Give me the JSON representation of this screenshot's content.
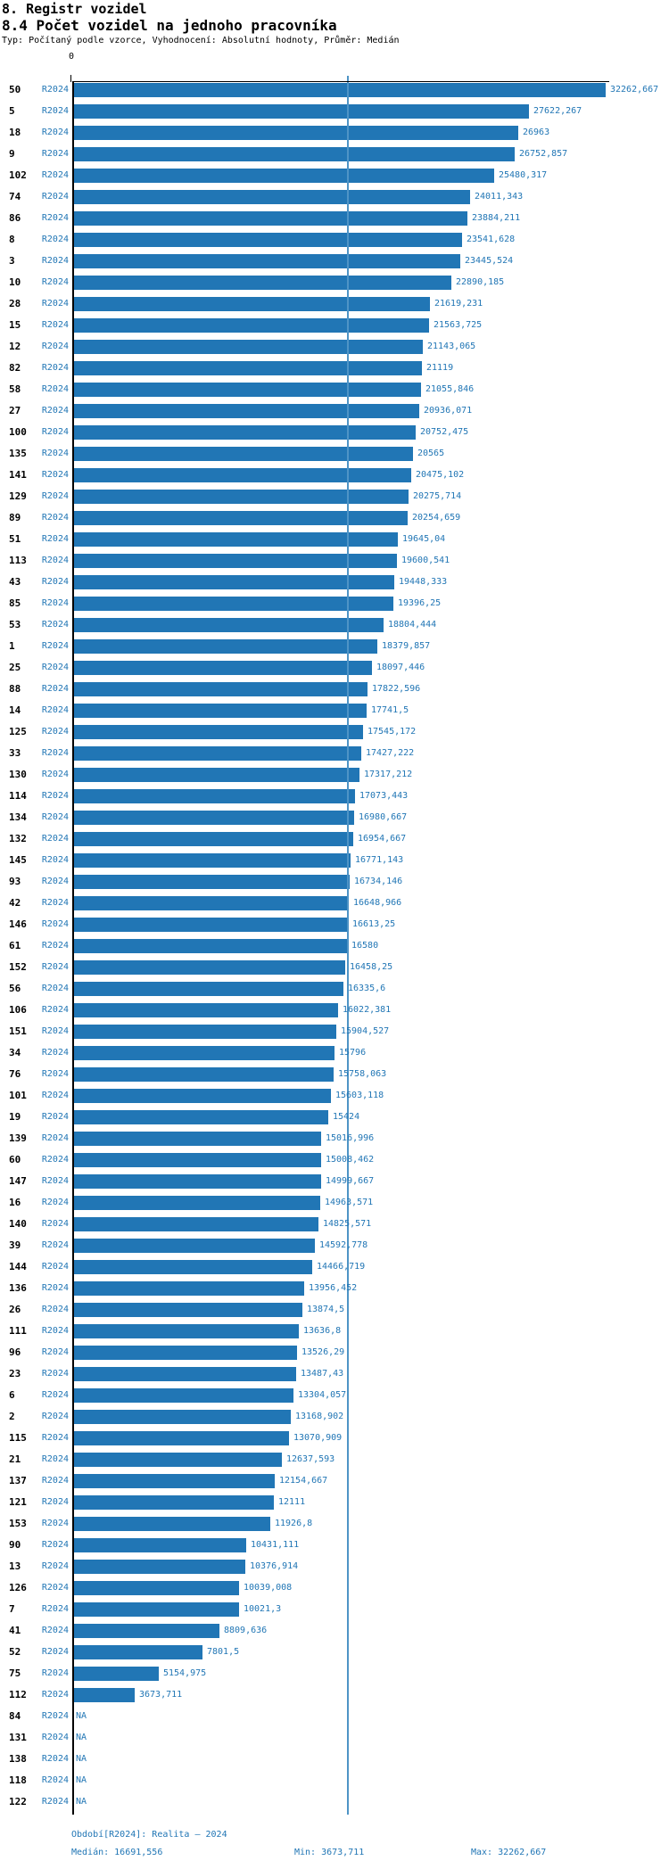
{
  "title": "8. Registr vozidel",
  "subtitle": "8.4 Počet vozidel na jednoho pracovníka",
  "meta": "Typ: Počítaný podle vzorce, Vyhodnocení: Absolutní hodnoty, Průměr: Medián",
  "axis": {
    "zero_label": "0"
  },
  "colors": {
    "bar": "#2176b5",
    "blue_text": "#2176b5",
    "median_line": "#4e94c6",
    "axis": "#000000"
  },
  "footer": {
    "period": "Období[R2024]: Realita – 2024",
    "median": "Medián: 16691,556",
    "min": "Min: 3673,711",
    "max": "Max: 32262,667"
  },
  "chart_data": {
    "type": "bar",
    "orientation": "horizontal",
    "series_label": "R2024",
    "value_axis": {
      "zero_tick": 0,
      "data_max": 32262.667,
      "gridline_at_median": true
    },
    "median": 16691.556,
    "min": 3673.711,
    "max": 32262.667,
    "na_text": "NA",
    "rows": [
      {
        "id": "50",
        "period": "R2024",
        "label": "32262,667",
        "value": 32262.667
      },
      {
        "id": "5",
        "period": "R2024",
        "label": "27622,267",
        "value": 27622.267
      },
      {
        "id": "18",
        "period": "R2024",
        "label": "26963",
        "value": 26963
      },
      {
        "id": "9",
        "period": "R2024",
        "label": "26752,857",
        "value": 26752.857
      },
      {
        "id": "102",
        "period": "R2024",
        "label": "25480,317",
        "value": 25480.317
      },
      {
        "id": "74",
        "period": "R2024",
        "label": "24011,343",
        "value": 24011.343
      },
      {
        "id": "86",
        "period": "R2024",
        "label": "23884,211",
        "value": 23884.211
      },
      {
        "id": "8",
        "period": "R2024",
        "label": "23541,628",
        "value": 23541.628
      },
      {
        "id": "3",
        "period": "R2024",
        "label": "23445,524",
        "value": 23445.524
      },
      {
        "id": "10",
        "period": "R2024",
        "label": "22890,185",
        "value": 22890.185
      },
      {
        "id": "28",
        "period": "R2024",
        "label": "21619,231",
        "value": 21619.231
      },
      {
        "id": "15",
        "period": "R2024",
        "label": "21563,725",
        "value": 21563.725
      },
      {
        "id": "12",
        "period": "R2024",
        "label": "21143,065",
        "value": 21143.065
      },
      {
        "id": "82",
        "period": "R2024",
        "label": "21119",
        "value": 21119
      },
      {
        "id": "58",
        "period": "R2024",
        "label": "21055,846",
        "value": 21055.846
      },
      {
        "id": "27",
        "period": "R2024",
        "label": "20936,071",
        "value": 20936.071
      },
      {
        "id": "100",
        "period": "R2024",
        "label": "20752,475",
        "value": 20752.475
      },
      {
        "id": "135",
        "period": "R2024",
        "label": "20565",
        "value": 20565
      },
      {
        "id": "141",
        "period": "R2024",
        "label": "20475,102",
        "value": 20475.102
      },
      {
        "id": "129",
        "period": "R2024",
        "label": "20275,714",
        "value": 20275.714
      },
      {
        "id": "89",
        "period": "R2024",
        "label": "20254,659",
        "value": 20254.659
      },
      {
        "id": "51",
        "period": "R2024",
        "label": "19645,04",
        "value": 19645.04
      },
      {
        "id": "113",
        "period": "R2024",
        "label": "19600,541",
        "value": 19600.541
      },
      {
        "id": "43",
        "period": "R2024",
        "label": "19448,333",
        "value": 19448.333
      },
      {
        "id": "85",
        "period": "R2024",
        "label": "19396,25",
        "value": 19396.25
      },
      {
        "id": "53",
        "period": "R2024",
        "label": "18804,444",
        "value": 18804.444
      },
      {
        "id": "1",
        "period": "R2024",
        "label": "18379,857",
        "value": 18379.857
      },
      {
        "id": "25",
        "period": "R2024",
        "label": "18097,446",
        "value": 18097.446
      },
      {
        "id": "88",
        "period": "R2024",
        "label": "17822,596",
        "value": 17822.596
      },
      {
        "id": "14",
        "period": "R2024",
        "label": "17741,5",
        "value": 17741.5
      },
      {
        "id": "125",
        "period": "R2024",
        "label": "17545,172",
        "value": 17545.172
      },
      {
        "id": "33",
        "period": "R2024",
        "label": "17427,222",
        "value": 17427.222
      },
      {
        "id": "130",
        "period": "R2024",
        "label": "17317,212",
        "value": 17317.212
      },
      {
        "id": "114",
        "period": "R2024",
        "label": "17073,443",
        "value": 17073.443
      },
      {
        "id": "134",
        "period": "R2024",
        "label": "16980,667",
        "value": 16980.667
      },
      {
        "id": "132",
        "period": "R2024",
        "label": "16954,667",
        "value": 16954.667
      },
      {
        "id": "145",
        "period": "R2024",
        "label": "16771,143",
        "value": 16771.143
      },
      {
        "id": "93",
        "period": "R2024",
        "label": "16734,146",
        "value": 16734.146
      },
      {
        "id": "42",
        "period": "R2024",
        "label": "16648,966",
        "value": 16648.966
      },
      {
        "id": "146",
        "period": "R2024",
        "label": "16613,25",
        "value": 16613.25
      },
      {
        "id": "61",
        "period": "R2024",
        "label": "16580",
        "value": 16580
      },
      {
        "id": "152",
        "period": "R2024",
        "label": "16458,25",
        "value": 16458.25
      },
      {
        "id": "56",
        "period": "R2024",
        "label": "16335,6",
        "value": 16335.6
      },
      {
        "id": "106",
        "period": "R2024",
        "label": "16022,381",
        "value": 16022.381
      },
      {
        "id": "151",
        "period": "R2024",
        "label": "15904,527",
        "value": 15904.527
      },
      {
        "id": "34",
        "period": "R2024",
        "label": "15796",
        "value": 15796
      },
      {
        "id": "76",
        "period": "R2024",
        "label": "15758,063",
        "value": 15758.063
      },
      {
        "id": "101",
        "period": "R2024",
        "label": "15603,118",
        "value": 15603.118
      },
      {
        "id": "19",
        "period": "R2024",
        "label": "15424",
        "value": 15424
      },
      {
        "id": "139",
        "period": "R2024",
        "label": "15016,996",
        "value": 15016.996
      },
      {
        "id": "60",
        "period": "R2024",
        "label": "15008,462",
        "value": 15008.462
      },
      {
        "id": "147",
        "period": "R2024",
        "label": "14999,667",
        "value": 14999.667
      },
      {
        "id": "16",
        "period": "R2024",
        "label": "14963,571",
        "value": 14963.571
      },
      {
        "id": "140",
        "period": "R2024",
        "label": "14825,571",
        "value": 14825.571
      },
      {
        "id": "39",
        "period": "R2024",
        "label": "14592,778",
        "value": 14592.778
      },
      {
        "id": "144",
        "period": "R2024",
        "label": "14466,719",
        "value": 14466.719
      },
      {
        "id": "136",
        "period": "R2024",
        "label": "13956,452",
        "value": 13956.452
      },
      {
        "id": "26",
        "period": "R2024",
        "label": "13874,5",
        "value": 13874.5
      },
      {
        "id": "111",
        "period": "R2024",
        "label": "13636,8",
        "value": 13636.8
      },
      {
        "id": "96",
        "period": "R2024",
        "label": "13526,29",
        "value": 13526.29
      },
      {
        "id": "23",
        "period": "R2024",
        "label": "13487,43",
        "value": 13487.43
      },
      {
        "id": "6",
        "period": "R2024",
        "label": "13304,057",
        "value": 13304.057
      },
      {
        "id": "2",
        "period": "R2024",
        "label": "13168,902",
        "value": 13168.902
      },
      {
        "id": "115",
        "period": "R2024",
        "label": "13070,909",
        "value": 13070.909
      },
      {
        "id": "21",
        "period": "R2024",
        "label": "12637,593",
        "value": 12637.593
      },
      {
        "id": "137",
        "period": "R2024",
        "label": "12154,667",
        "value": 12154.667
      },
      {
        "id": "121",
        "period": "R2024",
        "label": "12111",
        "value": 12111
      },
      {
        "id": "153",
        "period": "R2024",
        "label": "11926,8",
        "value": 11926.8
      },
      {
        "id": "90",
        "period": "R2024",
        "label": "10431,111",
        "value": 10431.111
      },
      {
        "id": "13",
        "period": "R2024",
        "label": "10376,914",
        "value": 10376.914
      },
      {
        "id": "126",
        "period": "R2024",
        "label": "10039,008",
        "value": 10039.008
      },
      {
        "id": "7",
        "period": "R2024",
        "label": "10021,3",
        "value": 10021.3
      },
      {
        "id": "41",
        "period": "R2024",
        "label": "8809,636",
        "value": 8809.636
      },
      {
        "id": "52",
        "period": "R2024",
        "label": "7801,5",
        "value": 7801.5
      },
      {
        "id": "75",
        "period": "R2024",
        "label": "5154,975",
        "value": 5154.975
      },
      {
        "id": "112",
        "period": "R2024",
        "label": "3673,711",
        "value": 3673.711
      },
      {
        "id": "84",
        "period": "R2024",
        "label": "NA",
        "value": null
      },
      {
        "id": "131",
        "period": "R2024",
        "label": "NA",
        "value": null
      },
      {
        "id": "138",
        "period": "R2024",
        "label": "NA",
        "value": null
      },
      {
        "id": "118",
        "period": "R2024",
        "label": "NA",
        "value": null
      },
      {
        "id": "122",
        "period": "R2024",
        "label": "NA",
        "value": null
      }
    ]
  }
}
